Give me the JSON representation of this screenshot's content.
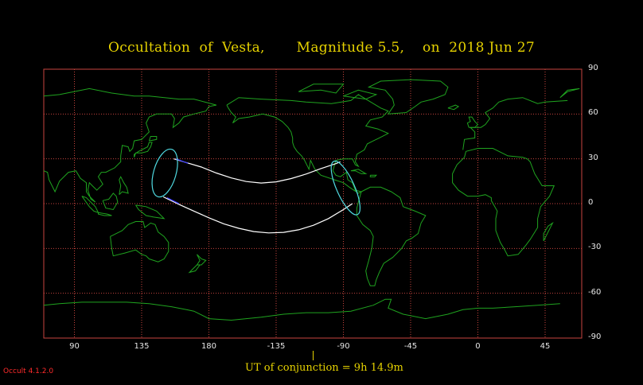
{
  "title": "Occultation  of  Vesta,       Magnitude 5.5,    on  2018 Jun 27",
  "ut_label": "UT of conjunction =  9h 14.9m",
  "version": "Occult 4.1.2.0",
  "x_ticks": [
    "90",
    "135",
    "180",
    "-135",
    "-90",
    "-45",
    "0",
    "45"
  ],
  "y_ticks": [
    "90",
    "60",
    "30",
    "0",
    "-30",
    "-60",
    "-90"
  ],
  "colors": {
    "background": "#000000",
    "grid": "#c8453f",
    "coastline": "#1fa31f",
    "track": "#ffffff",
    "limit_ellipse": "#4fd9e0",
    "title": "#e6d200",
    "version": "#ff2b2b"
  },
  "path": {
    "north_limit_lon": [
      156.5,
      165,
      175,
      185,
      195,
      205,
      215,
      225,
      235,
      245,
      255,
      265,
      268
    ],
    "north_limit_lat": [
      30,
      27.5,
      24.5,
      20.5,
      17.2,
      14.8,
      13.8,
      14.6,
      16.8,
      19.8,
      23.5,
      26.8,
      28
    ],
    "south_limit_lon": [
      149.5,
      160,
      170,
      180,
      190,
      200,
      210,
      220,
      230,
      240,
      250,
      260,
      270,
      276
    ],
    "south_limit_lat": [
      4.5,
      -0.5,
      -5,
      -9.5,
      -13.5,
      -16.5,
      -18.7,
      -19.6,
      -19.2,
      -17.5,
      -14.5,
      -10,
      -4,
      0
    ],
    "west_ellipse": {
      "lon": 150.5,
      "lat": 20.5,
      "rlon": 7.5,
      "rlat": 16.5,
      "tilt_deg": 16
    },
    "east_ellipse": {
      "lon": 271.5,
      "lat": 10.5,
      "rlon": 6,
      "rlat": 19.5,
      "tilt_deg": -24
    }
  }
}
